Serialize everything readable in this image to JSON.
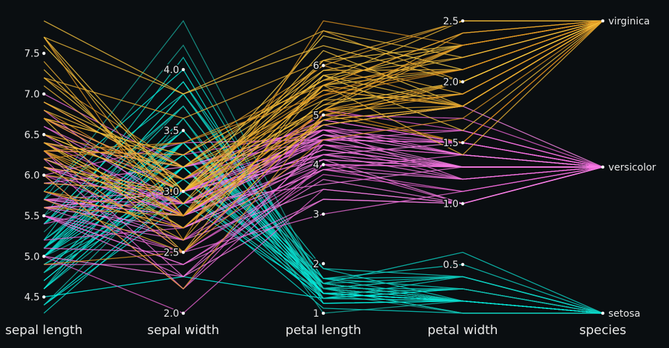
{
  "chart_data": {
    "type": "parallel-coordinates",
    "background": "#0a0e11",
    "dimensions": [
      {
        "label": "sepal length",
        "range": [
          4.3,
          7.9
        ],
        "ticks": [
          4.5,
          5.0,
          5.5,
          6.0,
          6.5,
          7.0,
          7.5
        ],
        "tick_labels": [
          "4.5",
          "5.0",
          "5.5",
          "6.0",
          "6.5",
          "7.0",
          "7.5"
        ]
      },
      {
        "label": "sepal width",
        "range": [
          2.0,
          4.4
        ],
        "ticks": [
          2.0,
          2.5,
          3.0,
          3.5,
          4.0
        ],
        "tick_labels": [
          "2.0",
          "2.5",
          "3.0",
          "3.5",
          "4.0"
        ]
      },
      {
        "label": "petal length",
        "range": [
          1,
          6.9
        ],
        "ticks": [
          1,
          2,
          3,
          4,
          5,
          6
        ],
        "tick_labels": [
          "1",
          "2",
          "3",
          "4",
          "5",
          "6"
        ]
      },
      {
        "label": "petal width",
        "range": [
          0.1,
          2.5
        ],
        "ticks": [
          0.5,
          1.0,
          1.5,
          2.0,
          2.5
        ],
        "tick_labels": [
          "0.5",
          "1.0",
          "1.5",
          "2.0",
          "2.5"
        ]
      },
      {
        "label": "species",
        "categorical": true,
        "ticks": [
          "setosa",
          "versicolor",
          "virginica"
        ],
        "tick_labels": [
          "setosa",
          "versicolor",
          "virginica"
        ]
      }
    ],
    "series": [
      {
        "name": "setosa",
        "colors": [
          "#1a9e90",
          "#00fff0"
        ],
        "rows": [
          [
            5.1,
            3.5,
            1.4,
            0.2
          ],
          [
            4.9,
            3.0,
            1.4,
            0.2
          ],
          [
            4.7,
            3.2,
            1.3,
            0.2
          ],
          [
            4.6,
            3.1,
            1.5,
            0.2
          ],
          [
            5.0,
            3.6,
            1.4,
            0.2
          ],
          [
            5.4,
            3.9,
            1.7,
            0.4
          ],
          [
            4.6,
            3.4,
            1.4,
            0.3
          ],
          [
            5.0,
            3.4,
            1.5,
            0.2
          ],
          [
            4.4,
            2.9,
            1.4,
            0.2
          ],
          [
            4.9,
            3.1,
            1.5,
            0.1
          ],
          [
            5.4,
            3.7,
            1.5,
            0.2
          ],
          [
            4.8,
            3.4,
            1.6,
            0.2
          ],
          [
            4.8,
            3.0,
            1.4,
            0.1
          ],
          [
            4.3,
            3.0,
            1.1,
            0.1
          ],
          [
            5.8,
            4.0,
            1.2,
            0.2
          ],
          [
            5.7,
            4.4,
            1.5,
            0.4
          ],
          [
            5.4,
            3.9,
            1.3,
            0.4
          ],
          [
            5.1,
            3.5,
            1.4,
            0.3
          ],
          [
            5.7,
            3.8,
            1.7,
            0.3
          ],
          [
            5.1,
            3.8,
            1.5,
            0.3
          ],
          [
            5.4,
            3.4,
            1.7,
            0.2
          ],
          [
            5.1,
            3.7,
            1.5,
            0.4
          ],
          [
            4.6,
            3.6,
            1.0,
            0.2
          ],
          [
            5.1,
            3.3,
            1.7,
            0.5
          ],
          [
            4.8,
            3.4,
            1.9,
            0.2
          ],
          [
            5.0,
            3.0,
            1.6,
            0.2
          ],
          [
            5.0,
            3.4,
            1.6,
            0.4
          ],
          [
            5.2,
            3.5,
            1.5,
            0.2
          ],
          [
            5.2,
            3.4,
            1.4,
            0.2
          ],
          [
            4.7,
            3.2,
            1.6,
            0.2
          ],
          [
            4.8,
            3.1,
            1.6,
            0.2
          ],
          [
            5.4,
            3.4,
            1.5,
            0.4
          ],
          [
            5.2,
            4.1,
            1.5,
            0.1
          ],
          [
            5.5,
            4.2,
            1.4,
            0.2
          ],
          [
            4.9,
            3.1,
            1.5,
            0.1
          ],
          [
            5.0,
            3.2,
            1.2,
            0.2
          ],
          [
            5.5,
            3.5,
            1.3,
            0.2
          ],
          [
            4.9,
            3.1,
            1.5,
            0.1
          ],
          [
            4.4,
            3.0,
            1.3,
            0.2
          ],
          [
            5.1,
            3.4,
            1.5,
            0.2
          ],
          [
            5.0,
            3.5,
            1.3,
            0.3
          ],
          [
            4.5,
            2.3,
            1.3,
            0.3
          ],
          [
            4.4,
            3.2,
            1.3,
            0.2
          ],
          [
            5.0,
            3.5,
            1.6,
            0.6
          ],
          [
            5.1,
            3.8,
            1.9,
            0.4
          ],
          [
            4.8,
            3.0,
            1.4,
            0.3
          ],
          [
            5.1,
            3.8,
            1.6,
            0.2
          ],
          [
            4.6,
            3.2,
            1.4,
            0.2
          ],
          [
            5.3,
            3.7,
            1.5,
            0.2
          ],
          [
            5.0,
            3.3,
            1.4,
            0.2
          ]
        ]
      },
      {
        "name": "versicolor",
        "colors": [
          "#e055c8",
          "#ff88ee"
        ],
        "rows": [
          [
            7.0,
            3.2,
            4.7,
            1.4
          ],
          [
            6.4,
            3.2,
            4.5,
            1.5
          ],
          [
            6.9,
            3.1,
            4.9,
            1.5
          ],
          [
            5.5,
            2.3,
            4.0,
            1.3
          ],
          [
            6.5,
            2.8,
            4.6,
            1.5
          ],
          [
            5.7,
            2.8,
            4.5,
            1.3
          ],
          [
            6.3,
            3.3,
            4.7,
            1.6
          ],
          [
            4.9,
            2.4,
            3.3,
            1.0
          ],
          [
            6.6,
            2.9,
            4.6,
            1.3
          ],
          [
            5.2,
            2.7,
            3.9,
            1.4
          ],
          [
            5.0,
            2.0,
            3.5,
            1.0
          ],
          [
            5.9,
            3.0,
            4.2,
            1.5
          ],
          [
            6.0,
            2.2,
            4.0,
            1.0
          ],
          [
            6.1,
            2.9,
            4.7,
            1.4
          ],
          [
            5.6,
            2.9,
            3.6,
            1.3
          ],
          [
            6.7,
            3.1,
            4.4,
            1.4
          ],
          [
            5.6,
            3.0,
            4.5,
            1.5
          ],
          [
            5.8,
            2.7,
            4.1,
            1.0
          ],
          [
            6.2,
            2.2,
            4.5,
            1.5
          ],
          [
            5.6,
            2.5,
            3.9,
            1.1
          ],
          [
            5.9,
            3.2,
            4.8,
            1.8
          ],
          [
            6.1,
            2.8,
            4.0,
            1.3
          ],
          [
            6.3,
            2.5,
            4.9,
            1.5
          ],
          [
            6.1,
            2.8,
            4.7,
            1.2
          ],
          [
            6.4,
            2.9,
            4.3,
            1.3
          ],
          [
            6.6,
            3.0,
            4.4,
            1.4
          ],
          [
            6.8,
            2.8,
            4.8,
            1.4
          ],
          [
            6.7,
            3.0,
            5.0,
            1.7
          ],
          [
            6.0,
            2.9,
            4.5,
            1.5
          ],
          [
            5.7,
            2.6,
            3.5,
            1.0
          ],
          [
            5.5,
            2.4,
            3.8,
            1.1
          ],
          [
            5.5,
            2.4,
            3.7,
            1.0
          ],
          [
            5.8,
            2.7,
            3.9,
            1.2
          ],
          [
            6.0,
            2.7,
            5.1,
            1.6
          ],
          [
            5.4,
            3.0,
            4.5,
            1.5
          ],
          [
            6.0,
            3.4,
            4.5,
            1.6
          ],
          [
            6.7,
            3.1,
            4.7,
            1.5
          ],
          [
            6.3,
            2.3,
            4.4,
            1.3
          ],
          [
            5.6,
            3.0,
            4.1,
            1.3
          ],
          [
            5.5,
            2.5,
            4.0,
            1.3
          ],
          [
            5.5,
            2.6,
            4.4,
            1.2
          ],
          [
            6.1,
            3.0,
            4.6,
            1.4
          ],
          [
            5.8,
            2.6,
            4.0,
            1.2
          ],
          [
            5.0,
            2.3,
            3.3,
            1.0
          ],
          [
            5.6,
            2.7,
            4.2,
            1.3
          ],
          [
            5.7,
            3.0,
            4.2,
            1.2
          ],
          [
            5.7,
            2.9,
            4.2,
            1.3
          ],
          [
            6.2,
            2.9,
            4.3,
            1.3
          ],
          [
            5.1,
            2.5,
            3.0,
            1.1
          ],
          [
            5.7,
            2.8,
            4.1,
            1.3
          ]
        ]
      },
      {
        "name": "virginica",
        "colors": [
          "#d8861a",
          "#ffd94a"
        ],
        "rows": [
          [
            6.3,
            3.3,
            6.0,
            2.5
          ],
          [
            5.8,
            2.7,
            5.1,
            1.9
          ],
          [
            7.1,
            3.0,
            5.9,
            2.1
          ],
          [
            6.3,
            2.9,
            5.6,
            1.8
          ],
          [
            6.5,
            3.0,
            5.8,
            2.2
          ],
          [
            7.6,
            3.0,
            6.6,
            2.1
          ],
          [
            4.9,
            2.5,
            4.5,
            1.7
          ],
          [
            7.3,
            2.9,
            6.3,
            1.8
          ],
          [
            6.7,
            2.5,
            5.8,
            1.8
          ],
          [
            7.2,
            3.6,
            6.1,
            2.5
          ],
          [
            6.5,
            3.2,
            5.1,
            2.0
          ],
          [
            6.4,
            2.7,
            5.3,
            1.9
          ],
          [
            6.8,
            3.0,
            5.5,
            2.1
          ],
          [
            5.7,
            2.5,
            5.0,
            2.0
          ],
          [
            5.8,
            2.8,
            5.1,
            2.4
          ],
          [
            6.4,
            3.2,
            5.3,
            2.3
          ],
          [
            6.5,
            3.0,
            5.5,
            1.8
          ],
          [
            7.7,
            3.8,
            6.7,
            2.2
          ],
          [
            7.7,
            2.6,
            6.9,
            2.3
          ],
          [
            6.0,
            2.2,
            5.0,
            1.5
          ],
          [
            6.9,
            3.2,
            5.7,
            2.3
          ],
          [
            5.6,
            2.8,
            4.9,
            2.0
          ],
          [
            7.7,
            2.8,
            6.7,
            2.0
          ],
          [
            6.3,
            2.7,
            4.9,
            1.8
          ],
          [
            6.7,
            3.3,
            5.7,
            2.1
          ],
          [
            7.2,
            3.2,
            6.0,
            1.8
          ],
          [
            6.2,
            2.8,
            4.8,
            1.8
          ],
          [
            6.1,
            3.0,
            4.9,
            1.8
          ],
          [
            6.4,
            2.8,
            5.6,
            2.1
          ],
          [
            7.2,
            3.0,
            5.8,
            1.6
          ],
          [
            7.4,
            2.8,
            6.1,
            1.9
          ],
          [
            7.9,
            3.8,
            6.4,
            2.0
          ],
          [
            6.4,
            2.8,
            5.6,
            2.2
          ],
          [
            6.3,
            2.8,
            5.1,
            1.5
          ],
          [
            6.1,
            2.6,
            5.6,
            1.4
          ],
          [
            7.7,
            3.0,
            6.1,
            2.3
          ],
          [
            6.3,
            3.4,
            5.6,
            2.4
          ],
          [
            6.4,
            3.1,
            5.5,
            1.8
          ],
          [
            6.0,
            3.0,
            4.8,
            1.8
          ],
          [
            6.9,
            3.1,
            5.4,
            2.1
          ],
          [
            6.7,
            3.1,
            5.6,
            2.4
          ],
          [
            6.9,
            3.1,
            5.1,
            2.3
          ],
          [
            5.8,
            2.7,
            5.1,
            1.9
          ],
          [
            6.8,
            3.2,
            5.9,
            2.3
          ],
          [
            6.7,
            3.3,
            5.7,
            2.5
          ],
          [
            6.7,
            3.0,
            5.2,
            2.3
          ],
          [
            6.3,
            2.5,
            5.0,
            1.9
          ],
          [
            6.5,
            3.0,
            5.2,
            2.0
          ],
          [
            6.2,
            3.4,
            5.4,
            2.3
          ],
          [
            5.9,
            3.0,
            5.1,
            1.8
          ]
        ]
      }
    ]
  }
}
